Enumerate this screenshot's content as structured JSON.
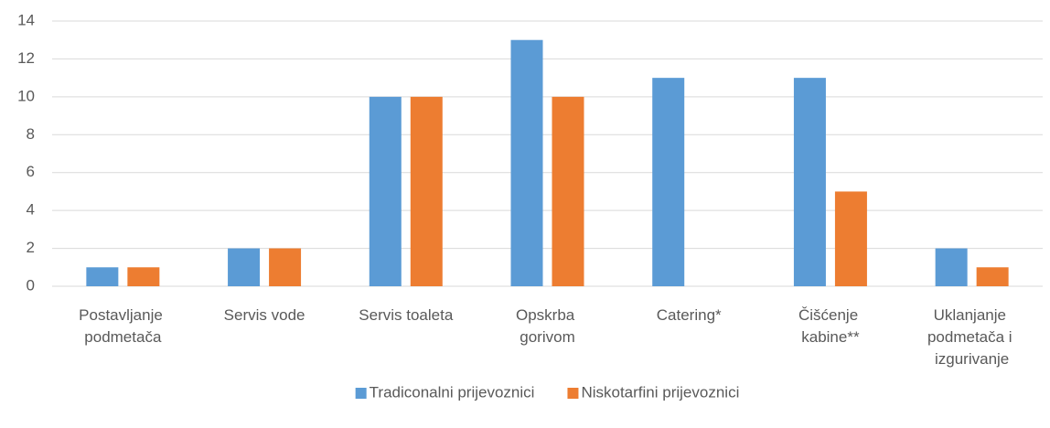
{
  "chart_data": {
    "type": "bar",
    "categories": [
      "Postavljanje podmetača",
      "Servis vode",
      "Servis toaleta",
      "Opskrba gorivom",
      "Catering*",
      "Čišćenje kabine**",
      "Uklanjanje podmetača i izgurivanje"
    ],
    "series": [
      {
        "name": "Tradiconalni prijevoznici",
        "color": "#5b9bd5",
        "values": [
          1,
          2,
          10,
          13,
          11,
          11,
          2
        ]
      },
      {
        "name": "Niskotarfini prijevoznici",
        "color": "#ed7d31",
        "values": [
          1,
          2,
          10,
          10,
          0,
          5,
          1
        ]
      }
    ],
    "ylim": [
      0,
      14
    ],
    "yticks": [
      0,
      2,
      4,
      6,
      8,
      10,
      12,
      14
    ],
    "grid": true,
    "legend": "bottom"
  }
}
